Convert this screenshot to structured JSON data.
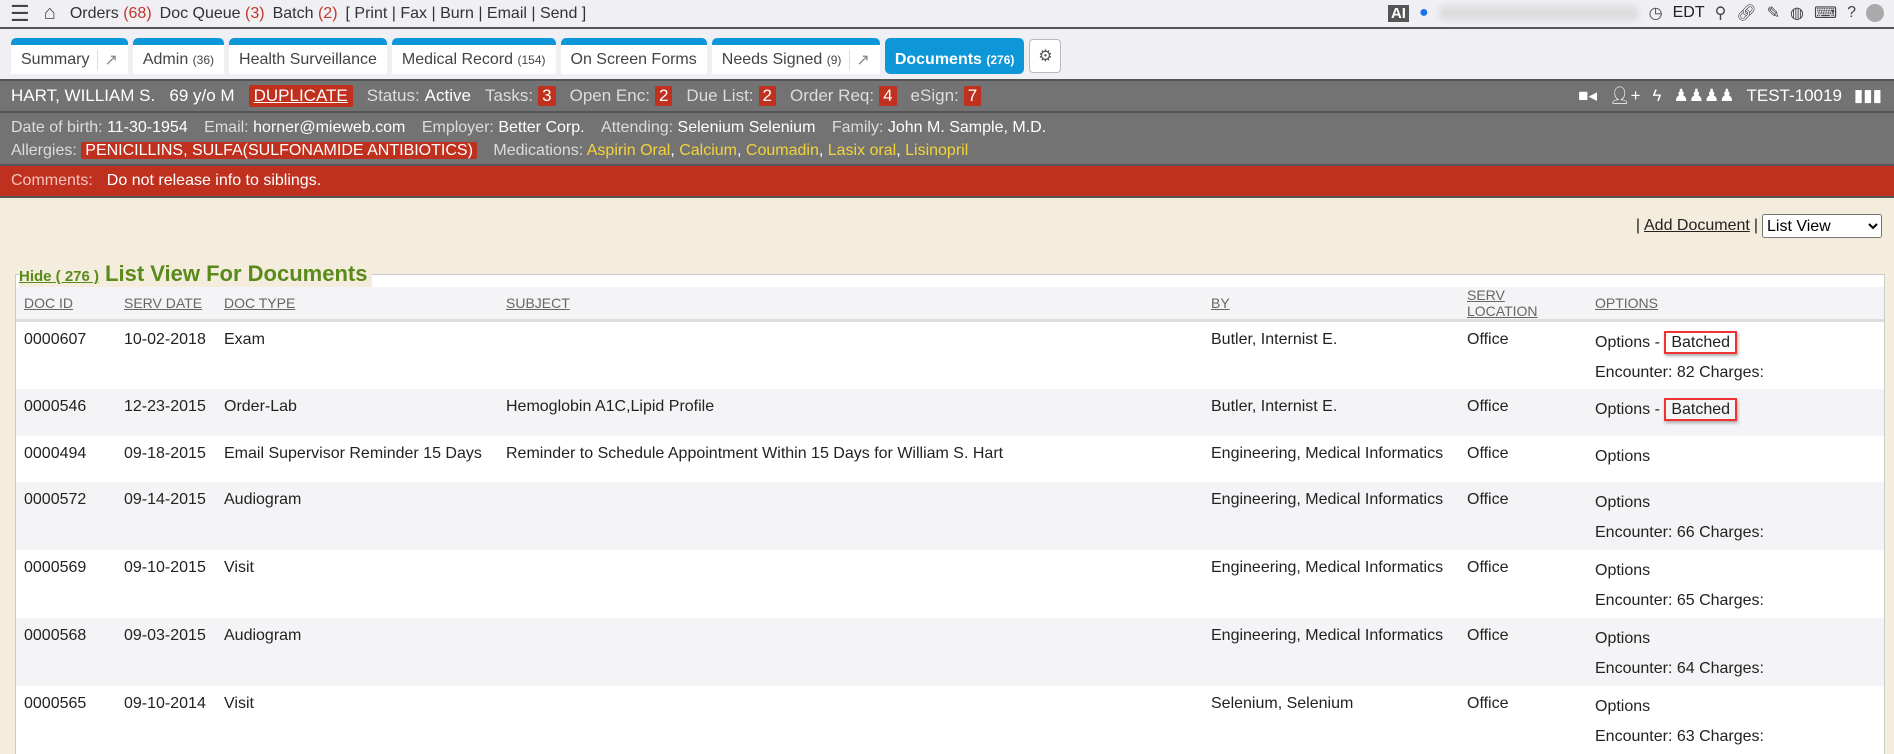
{
  "topbar": {
    "orders_label": "Orders",
    "orders_count": "(68)",
    "docqueue_label": "Doc Queue",
    "docqueue_count": "(3)",
    "batch_label": "Batch",
    "batch_count": "(2)",
    "actions": "[ Print | Fax | Burn | Email | Send ]",
    "ai": "AI",
    "timezone": "EDT"
  },
  "tabs": [
    {
      "label": "Summary"
    },
    {
      "label": "Admin",
      "count": "(36)"
    },
    {
      "label": "Health Surveillance"
    },
    {
      "label": "Medical Record",
      "count": "(154)"
    },
    {
      "label": "On Screen Forms"
    },
    {
      "label": "Needs Signed",
      "count": "(9)"
    },
    {
      "label": "Documents",
      "count": "(276)"
    }
  ],
  "patient": {
    "name": "HART, WILLIAM S.",
    "age": "69 y/o M",
    "duplicate": "DUPLICATE",
    "status_label": "Status:",
    "status": "Active",
    "tasks_label": "Tasks:",
    "tasks": "3",
    "openenc_label": "Open Enc:",
    "openenc": "2",
    "duelist_label": "Due List:",
    "duelist": "2",
    "orderreq_label": "Order Req:",
    "orderreq": "4",
    "esign_label": "eSign:",
    "esign": "7",
    "id": "TEST-10019"
  },
  "info": {
    "dob_label": "Date of birth:",
    "dob": "11-30-1954",
    "email_label": "Email:",
    "email": "horner@mieweb.com",
    "employer_label": "Employer:",
    "employer": "Better Corp.",
    "attending_label": "Attending:",
    "attending": "Selenium Selenium",
    "family_label": "Family:",
    "family": "John M. Sample, M.D.",
    "allergies_label": "Allergies:",
    "allergies": "PENICILLINS, SULFA(SULFONAMIDE ANTIBIOTICS)",
    "medications_label": "Medications:",
    "medications": [
      "Aspirin Oral",
      "Calcium",
      "Coumadin",
      "Lasix oral",
      "Lisinopril"
    ]
  },
  "comments": {
    "label": "Comments:",
    "text": "Do not release info to siblings."
  },
  "toolbar": {
    "add_document": "Add Document",
    "view": "List View"
  },
  "list": {
    "hide": "Hide ( 276 )",
    "title": "List View For Documents",
    "columns": [
      "DOC ID",
      "SERV DATE",
      "DOC TYPE",
      "SUBJECT",
      "BY",
      "SERV LOCATION",
      "OPTIONS"
    ],
    "rows": [
      {
        "id": "0000607",
        "date": "10-02-2018",
        "type": "Exam",
        "subject": "",
        "by": "Butler, Internist E.",
        "loc": "Office",
        "options": "Options",
        "batched": "Batched",
        "encounter": "Encounter: 82 Charges:"
      },
      {
        "id": "0000546",
        "date": "12-23-2015",
        "type": "Order-Lab",
        "subject": "Hemoglobin A1C,Lipid Profile",
        "by": "Butler, Internist E.",
        "loc": "Office",
        "options": "Options",
        "batched": "Batched",
        "encounter": ""
      },
      {
        "id": "0000494",
        "date": "09-18-2015",
        "type": "Email Supervisor Reminder 15 Days",
        "subject": "Reminder to Schedule Appointment Within 15 Days for William S. Hart",
        "by": "Engineering, Medical Informatics",
        "loc": "Office",
        "options": "Options",
        "batched": "",
        "encounter": ""
      },
      {
        "id": "0000572",
        "date": "09-14-2015",
        "type": "Audiogram",
        "subject": "",
        "by": "Engineering, Medical Informatics",
        "loc": "Office",
        "options": "Options",
        "batched": "",
        "encounter": "Encounter: 66 Charges:"
      },
      {
        "id": "0000569",
        "date": "09-10-2015",
        "type": "Visit",
        "subject": "",
        "by": "Engineering, Medical Informatics",
        "loc": "Office",
        "options": "Options",
        "batched": "",
        "encounter": "Encounter: 65 Charges:"
      },
      {
        "id": "0000568",
        "date": "09-03-2015",
        "type": "Audiogram",
        "subject": "",
        "by": "Engineering, Medical Informatics",
        "loc": "Office",
        "options": "Options",
        "batched": "",
        "encounter": "Encounter: 64 Charges:"
      },
      {
        "id": "0000565",
        "date": "09-10-2014",
        "type": "Visit",
        "subject": "",
        "by": "Selenium, Selenium",
        "loc": "Office",
        "options": "Options",
        "batched": "",
        "encounter": "Encounter: 63 Charges:"
      }
    ]
  }
}
